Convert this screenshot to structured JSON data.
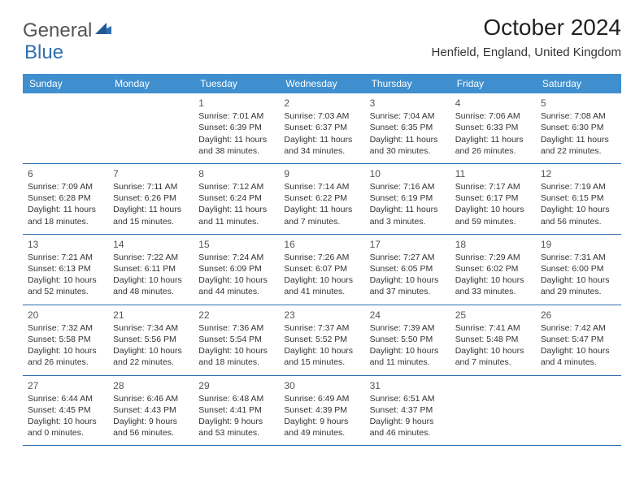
{
  "logo": {
    "text1": "General",
    "text2": "Blue"
  },
  "title": "October 2024",
  "location": "Henfield, England, United Kingdom",
  "colors": {
    "header_bg": "#3f8fcf",
    "header_text": "#ffffff",
    "week_border": "#2f6fb0",
    "logo_gray": "#555555",
    "logo_blue": "#2f6fb0",
    "text": "#333333"
  },
  "day_headers": [
    "Sunday",
    "Monday",
    "Tuesday",
    "Wednesday",
    "Thursday",
    "Friday",
    "Saturday"
  ],
  "weeks": [
    [
      {
        "empty": true
      },
      {
        "empty": true
      },
      {
        "n": "1",
        "sr": "Sunrise: 7:01 AM",
        "ss": "Sunset: 6:39 PM",
        "d1": "Daylight: 11 hours",
        "d2": "and 38 minutes."
      },
      {
        "n": "2",
        "sr": "Sunrise: 7:03 AM",
        "ss": "Sunset: 6:37 PM",
        "d1": "Daylight: 11 hours",
        "d2": "and 34 minutes."
      },
      {
        "n": "3",
        "sr": "Sunrise: 7:04 AM",
        "ss": "Sunset: 6:35 PM",
        "d1": "Daylight: 11 hours",
        "d2": "and 30 minutes."
      },
      {
        "n": "4",
        "sr": "Sunrise: 7:06 AM",
        "ss": "Sunset: 6:33 PM",
        "d1": "Daylight: 11 hours",
        "d2": "and 26 minutes."
      },
      {
        "n": "5",
        "sr": "Sunrise: 7:08 AM",
        "ss": "Sunset: 6:30 PM",
        "d1": "Daylight: 11 hours",
        "d2": "and 22 minutes."
      }
    ],
    [
      {
        "n": "6",
        "sr": "Sunrise: 7:09 AM",
        "ss": "Sunset: 6:28 PM",
        "d1": "Daylight: 11 hours",
        "d2": "and 18 minutes."
      },
      {
        "n": "7",
        "sr": "Sunrise: 7:11 AM",
        "ss": "Sunset: 6:26 PM",
        "d1": "Daylight: 11 hours",
        "d2": "and 15 minutes."
      },
      {
        "n": "8",
        "sr": "Sunrise: 7:12 AM",
        "ss": "Sunset: 6:24 PM",
        "d1": "Daylight: 11 hours",
        "d2": "and 11 minutes."
      },
      {
        "n": "9",
        "sr": "Sunrise: 7:14 AM",
        "ss": "Sunset: 6:22 PM",
        "d1": "Daylight: 11 hours",
        "d2": "and 7 minutes."
      },
      {
        "n": "10",
        "sr": "Sunrise: 7:16 AM",
        "ss": "Sunset: 6:19 PM",
        "d1": "Daylight: 11 hours",
        "d2": "and 3 minutes."
      },
      {
        "n": "11",
        "sr": "Sunrise: 7:17 AM",
        "ss": "Sunset: 6:17 PM",
        "d1": "Daylight: 10 hours",
        "d2": "and 59 minutes."
      },
      {
        "n": "12",
        "sr": "Sunrise: 7:19 AM",
        "ss": "Sunset: 6:15 PM",
        "d1": "Daylight: 10 hours",
        "d2": "and 56 minutes."
      }
    ],
    [
      {
        "n": "13",
        "sr": "Sunrise: 7:21 AM",
        "ss": "Sunset: 6:13 PM",
        "d1": "Daylight: 10 hours",
        "d2": "and 52 minutes."
      },
      {
        "n": "14",
        "sr": "Sunrise: 7:22 AM",
        "ss": "Sunset: 6:11 PM",
        "d1": "Daylight: 10 hours",
        "d2": "and 48 minutes."
      },
      {
        "n": "15",
        "sr": "Sunrise: 7:24 AM",
        "ss": "Sunset: 6:09 PM",
        "d1": "Daylight: 10 hours",
        "d2": "and 44 minutes."
      },
      {
        "n": "16",
        "sr": "Sunrise: 7:26 AM",
        "ss": "Sunset: 6:07 PM",
        "d1": "Daylight: 10 hours",
        "d2": "and 41 minutes."
      },
      {
        "n": "17",
        "sr": "Sunrise: 7:27 AM",
        "ss": "Sunset: 6:05 PM",
        "d1": "Daylight: 10 hours",
        "d2": "and 37 minutes."
      },
      {
        "n": "18",
        "sr": "Sunrise: 7:29 AM",
        "ss": "Sunset: 6:02 PM",
        "d1": "Daylight: 10 hours",
        "d2": "and 33 minutes."
      },
      {
        "n": "19",
        "sr": "Sunrise: 7:31 AM",
        "ss": "Sunset: 6:00 PM",
        "d1": "Daylight: 10 hours",
        "d2": "and 29 minutes."
      }
    ],
    [
      {
        "n": "20",
        "sr": "Sunrise: 7:32 AM",
        "ss": "Sunset: 5:58 PM",
        "d1": "Daylight: 10 hours",
        "d2": "and 26 minutes."
      },
      {
        "n": "21",
        "sr": "Sunrise: 7:34 AM",
        "ss": "Sunset: 5:56 PM",
        "d1": "Daylight: 10 hours",
        "d2": "and 22 minutes."
      },
      {
        "n": "22",
        "sr": "Sunrise: 7:36 AM",
        "ss": "Sunset: 5:54 PM",
        "d1": "Daylight: 10 hours",
        "d2": "and 18 minutes."
      },
      {
        "n": "23",
        "sr": "Sunrise: 7:37 AM",
        "ss": "Sunset: 5:52 PM",
        "d1": "Daylight: 10 hours",
        "d2": "and 15 minutes."
      },
      {
        "n": "24",
        "sr": "Sunrise: 7:39 AM",
        "ss": "Sunset: 5:50 PM",
        "d1": "Daylight: 10 hours",
        "d2": "and 11 minutes."
      },
      {
        "n": "25",
        "sr": "Sunrise: 7:41 AM",
        "ss": "Sunset: 5:48 PM",
        "d1": "Daylight: 10 hours",
        "d2": "and 7 minutes."
      },
      {
        "n": "26",
        "sr": "Sunrise: 7:42 AM",
        "ss": "Sunset: 5:47 PM",
        "d1": "Daylight: 10 hours",
        "d2": "and 4 minutes."
      }
    ],
    [
      {
        "n": "27",
        "sr": "Sunrise: 6:44 AM",
        "ss": "Sunset: 4:45 PM",
        "d1": "Daylight: 10 hours",
        "d2": "and 0 minutes."
      },
      {
        "n": "28",
        "sr": "Sunrise: 6:46 AM",
        "ss": "Sunset: 4:43 PM",
        "d1": "Daylight: 9 hours",
        "d2": "and 56 minutes."
      },
      {
        "n": "29",
        "sr": "Sunrise: 6:48 AM",
        "ss": "Sunset: 4:41 PM",
        "d1": "Daylight: 9 hours",
        "d2": "and 53 minutes."
      },
      {
        "n": "30",
        "sr": "Sunrise: 6:49 AM",
        "ss": "Sunset: 4:39 PM",
        "d1": "Daylight: 9 hours",
        "d2": "and 49 minutes."
      },
      {
        "n": "31",
        "sr": "Sunrise: 6:51 AM",
        "ss": "Sunset: 4:37 PM",
        "d1": "Daylight: 9 hours",
        "d2": "and 46 minutes."
      },
      {
        "empty": true
      },
      {
        "empty": true
      }
    ]
  ]
}
